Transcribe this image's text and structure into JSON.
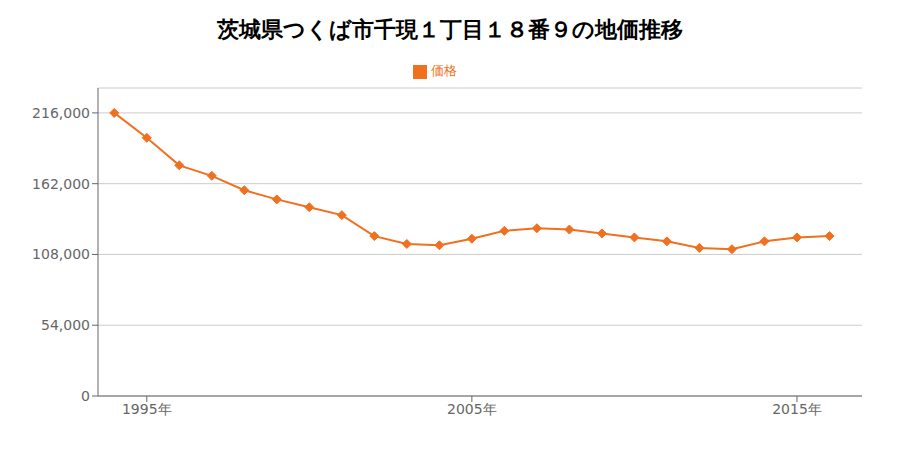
{
  "chart_data": {
    "type": "line",
    "title": "茨城県つくば市千現１丁目１８番９の地価推移",
    "x": [
      1994,
      1995,
      1996,
      1997,
      1998,
      1999,
      2000,
      2001,
      2002,
      2003,
      2004,
      2005,
      2006,
      2007,
      2008,
      2009,
      2010,
      2011,
      2012,
      2013,
      2014,
      2015,
      2016
    ],
    "series": [
      {
        "name": "価格",
        "color": "#f07020",
        "marker": "diamond",
        "values": [
          216000,
          197000,
          176000,
          168000,
          157000,
          150000,
          144000,
          138000,
          122000,
          116000,
          115000,
          120000,
          126000,
          128000,
          127000,
          124000,
          121000,
          118000,
          113000,
          112000,
          118000,
          121000,
          122000
        ]
      }
    ],
    "xlim": [
      1993.5,
      2017
    ],
    "xticks": [
      {
        "value": 1995,
        "label": "1995年"
      },
      {
        "value": 2005,
        "label": "2005年"
      },
      {
        "value": 2015,
        "label": "2015年"
      }
    ],
    "ylim": [
      0,
      235000
    ],
    "yticks": [
      0,
      {
        "value": 54000,
        "label": "54,000"
      },
      {
        "value": 108000,
        "label": "108,000"
      },
      {
        "value": 162000,
        "label": "162,000"
      },
      {
        "value": 216000,
        "label": "216,000"
      }
    ],
    "grid": true,
    "legend": "top"
  }
}
